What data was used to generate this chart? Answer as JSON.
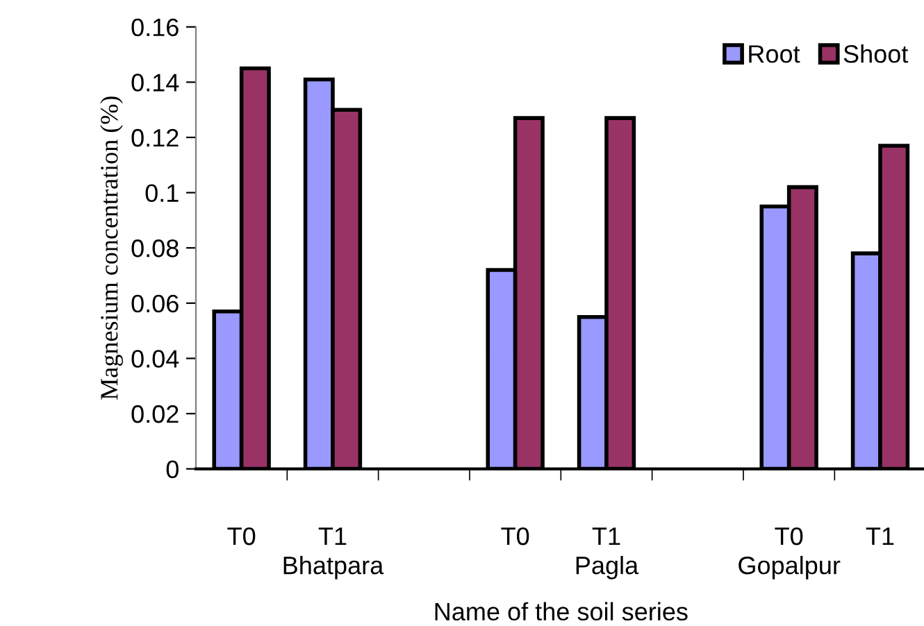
{
  "chart_data": {
    "type": "bar",
    "xlabel": "Name of the soil series",
    "ylabel": "Magnesium concentration (%)",
    "categories": [
      "T0",
      "T1",
      null,
      "T0",
      "T1",
      null,
      "T0",
      "T1"
    ],
    "series": [
      {
        "name": "Root",
        "color": "#9999ff",
        "values": [
          0.057,
          0.141,
          null,
          0.072,
          0.055,
          null,
          0.095,
          0.078
        ]
      },
      {
        "name": "Shoot",
        "color": "#993366",
        "values": [
          0.145,
          0.13,
          null,
          0.127,
          0.127,
          null,
          0.102,
          0.117
        ]
      }
    ],
    "annotations": [
      "Bhatpara",
      "Pagla",
      "Gopalpur"
    ],
    "ylim": [
      0,
      0.16
    ],
    "yticks": [
      0,
      0.02,
      0.04,
      0.06,
      0.08,
      {
        "value": 0.1,
        "label": "0.1"
      },
      0.12,
      0.14,
      0.16
    ],
    "grid": false,
    "legend": "top right"
  }
}
